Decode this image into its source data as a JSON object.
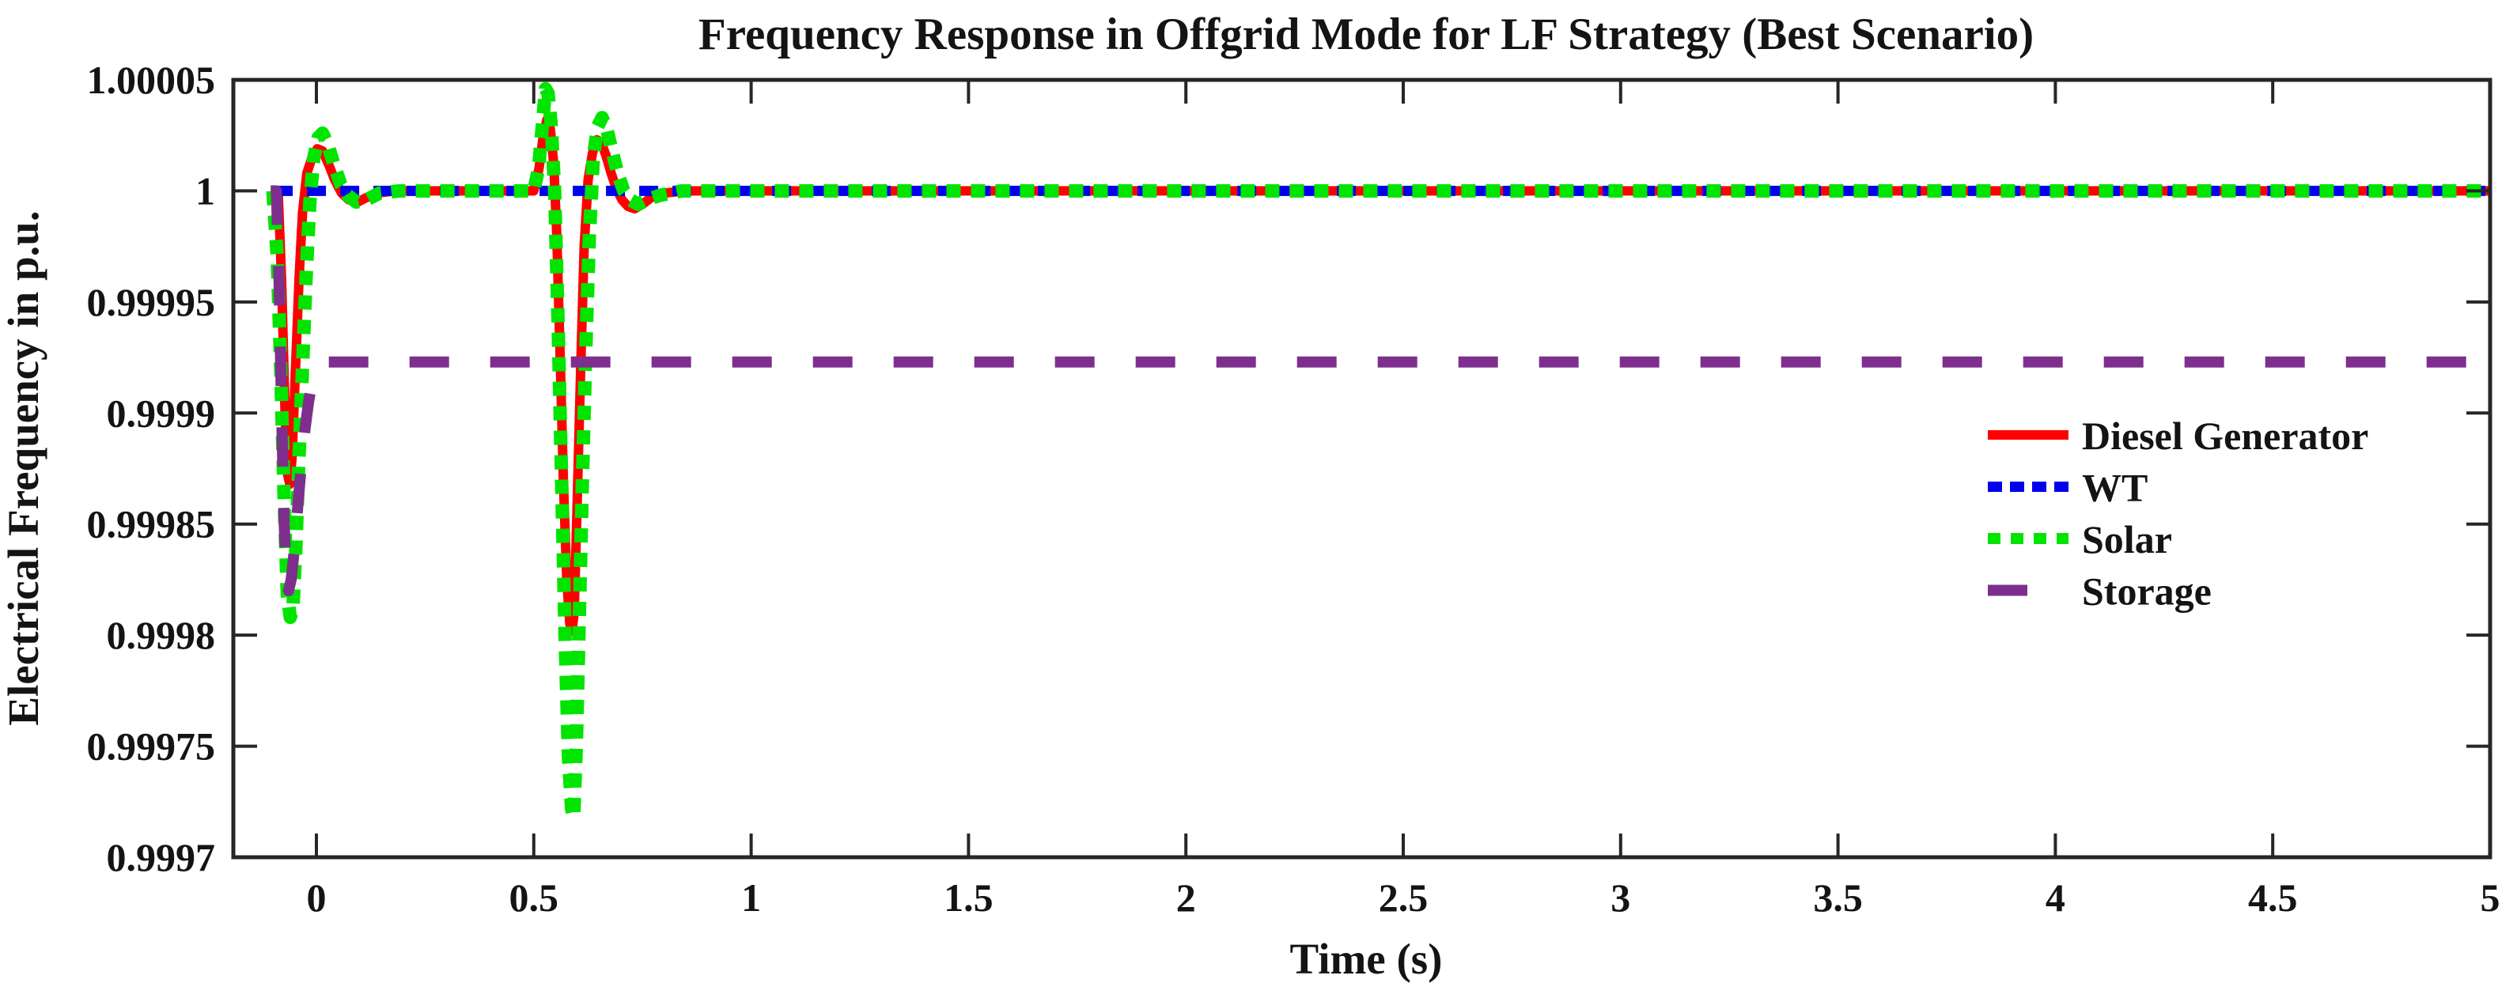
{
  "chart_data": {
    "type": "line",
    "title": "Frequency Response in Offgrid Mode for LF Strategy (Best Scenario)",
    "xlabel": "Time (s)",
    "ylabel": "Electrical Frequency in p.u.",
    "xlim": [
      -0.191,
      5
    ],
    "ylim": [
      0.9997,
      1.00005
    ],
    "grid": false,
    "box": true,
    "tick_direction": "in",
    "axis_color": "#262626",
    "background_color": "#ffffff",
    "xticks": [
      {
        "value": 0,
        "label": "0"
      },
      {
        "value": 0.5,
        "label": "0.5"
      },
      {
        "value": 1,
        "label": "1"
      },
      {
        "value": 1.5,
        "label": "1.5"
      },
      {
        "value": 2,
        "label": "2"
      },
      {
        "value": 2.5,
        "label": "2.5"
      },
      {
        "value": 3,
        "label": "3"
      },
      {
        "value": 3.5,
        "label": "3.5"
      },
      {
        "value": 4,
        "label": "4"
      },
      {
        "value": 4.5,
        "label": "4.5"
      },
      {
        "value": 5,
        "label": "5"
      }
    ],
    "yticks": [
      {
        "value": 0.9997,
        "label": "0.9997"
      },
      {
        "value": 0.99975,
        "label": "0.99975"
      },
      {
        "value": 0.9998,
        "label": "0.9998"
      },
      {
        "value": 0.99985,
        "label": "0.99985"
      },
      {
        "value": 0.9999,
        "label": "0.9999"
      },
      {
        "value": 0.99995,
        "label": "0.99995"
      },
      {
        "value": 1,
        "label": "1"
      },
      {
        "value": 1.00005,
        "label": "1.00005"
      }
    ],
    "legend_position": "right-center",
    "legend": [
      {
        "label": "Diesel Generator",
        "color": "#FF0000",
        "dash": "none",
        "width": 12
      },
      {
        "label": "WT",
        "color": "#0000EE",
        "dash": "18 10",
        "width": 13
      },
      {
        "label": "Solar",
        "color": "#00E400",
        "dash": "16 13",
        "width": 14
      },
      {
        "label": "Storage",
        "color": "#7E2F8E",
        "dash": "50 52",
        "width": 14
      }
    ],
    "series": [
      {
        "name": "Diesel Generator",
        "color": "#FF0000",
        "style": "solid",
        "width": 12,
        "dash": "none",
        "points": [
          [
            -0.105,
            1
          ],
          [
            -0.088,
            1
          ],
          [
            -0.08,
            0.99996
          ],
          [
            -0.072,
            0.9999
          ],
          [
            -0.066,
            0.999872
          ],
          [
            -0.061,
            0.999868
          ],
          [
            -0.056,
            0.99988
          ],
          [
            -0.048,
            0.99992
          ],
          [
            -0.04,
            0.99996
          ],
          [
            -0.032,
            0.99999
          ],
          [
            -0.022,
            1.000008
          ],
          [
            -0.01,
            1.000015
          ],
          [
            0.002,
            1.000019
          ],
          [
            0.014,
            1.000018
          ],
          [
            0.028,
            1.000012
          ],
          [
            0.042,
            1.000005
          ],
          [
            0.058,
            0.999999
          ],
          [
            0.075,
            0.999996
          ],
          [
            0.095,
            0.999995
          ],
          [
            0.115,
            0.999997
          ],
          [
            0.14,
            0.999999
          ],
          [
            0.18,
            1
          ],
          [
            0.5,
            1
          ],
          [
            0.512,
            1.00001
          ],
          [
            0.522,
            1.000025
          ],
          [
            0.53,
            1.000032
          ],
          [
            0.538,
            1.000028
          ],
          [
            0.546,
            1.000012
          ],
          [
            0.553,
            0.99998
          ],
          [
            0.56,
            0.99993
          ],
          [
            0.568,
            0.99987
          ],
          [
            0.576,
            0.999825
          ],
          [
            0.583,
            0.999805
          ],
          [
            0.588,
            0.999802
          ],
          [
            0.593,
            0.99981
          ],
          [
            0.6,
            0.99986
          ],
          [
            0.608,
            0.99992
          ],
          [
            0.616,
            0.999975
          ],
          [
            0.625,
            1.000005
          ],
          [
            0.635,
            1.000017
          ],
          [
            0.645,
            1.000023
          ],
          [
            0.655,
            1.000022
          ],
          [
            0.666,
            1.000016
          ],
          [
            0.678,
            1.000008
          ],
          [
            0.69,
            1.000001
          ],
          [
            0.703,
            0.999996
          ],
          [
            0.717,
            0.999993
          ],
          [
            0.732,
            0.999992
          ],
          [
            0.75,
            0.999994
          ],
          [
            0.77,
            0.999997
          ],
          [
            0.8,
            0.999999
          ],
          [
            0.85,
            1
          ],
          [
            5,
            1
          ]
        ]
      },
      {
        "name": "WT",
        "color": "#0000EE",
        "style": "dashed",
        "width": 13,
        "dash": "24 18",
        "points": [
          [
            -0.098,
            1
          ],
          [
            5,
            1
          ]
        ]
      },
      {
        "name": "Solar",
        "color": "#00E400",
        "style": "dotted",
        "width": 17,
        "dash": "18 13",
        "points": [
          [
            -0.1,
            1
          ],
          [
            -0.09,
            0.99997
          ],
          [
            -0.082,
            0.99992
          ],
          [
            -0.074,
            0.99986
          ],
          [
            -0.067,
            0.999818
          ],
          [
            -0.06,
            0.999808
          ],
          [
            -0.054,
            0.999812
          ],
          [
            -0.047,
            0.99984
          ],
          [
            -0.04,
            0.99988
          ],
          [
            -0.032,
            0.99992
          ],
          [
            -0.024,
            0.99996
          ],
          [
            -0.015,
            0.999995
          ],
          [
            -0.006,
            1.000015
          ],
          [
            0.004,
            1.000024
          ],
          [
            0.014,
            1.000026
          ],
          [
            0.026,
            1.000021
          ],
          [
            0.04,
            1.000012
          ],
          [
            0.056,
            1.000003
          ],
          [
            0.072,
            0.999998
          ],
          [
            0.092,
            0.999995
          ],
          [
            0.115,
            0.999996
          ],
          [
            0.145,
            0.999999
          ],
          [
            0.19,
            1
          ],
          [
            0.5,
            1
          ],
          [
            0.511,
            1.00001
          ],
          [
            0.52,
            1.00003
          ],
          [
            0.527,
            1.000046
          ],
          [
            0.533,
            1.000044
          ],
          [
            0.54,
            1.00003
          ],
          [
            0.548,
            1
          ],
          [
            0.556,
            0.99994
          ],
          [
            0.564,
            0.99987
          ],
          [
            0.572,
            0.9998
          ],
          [
            0.58,
            0.999745
          ],
          [
            0.587,
            0.999722
          ],
          [
            0.592,
            0.999718
          ],
          [
            0.598,
            0.99975
          ],
          [
            0.605,
            0.99981
          ],
          [
            0.612,
            0.99987
          ],
          [
            0.62,
            0.99993
          ],
          [
            0.628,
            0.99998
          ],
          [
            0.637,
            1.000015
          ],
          [
            0.647,
            1.000029
          ],
          [
            0.657,
            1.000033
          ],
          [
            0.668,
            1.000028
          ],
          [
            0.68,
            1.000018
          ],
          [
            0.693,
            1.000008
          ],
          [
            0.707,
            1
          ],
          [
            0.722,
            0.999996
          ],
          [
            0.74,
            0.999994
          ],
          [
            0.76,
            0.999996
          ],
          [
            0.79,
            0.999998
          ],
          [
            0.84,
            1
          ],
          [
            5,
            1
          ]
        ]
      },
      {
        "name": "Storage",
        "color": "#7E2F8E",
        "style": "dashed",
        "width": 14,
        "dash": "50 52",
        "points": [
          [
            -0.105,
            1
          ],
          [
            -0.092,
            1
          ],
          [
            -0.086,
            0.99996
          ],
          [
            -0.08,
            0.9999
          ],
          [
            -0.074,
            0.99985
          ],
          [
            -0.069,
            0.999825
          ],
          [
            -0.064,
            0.99982
          ],
          [
            -0.058,
            0.999825
          ],
          [
            -0.05,
            0.99984
          ],
          [
            -0.042,
            0.99986
          ],
          [
            -0.034,
            0.999878
          ],
          [
            -0.026,
            0.999893
          ],
          [
            -0.018,
            0.999905
          ],
          [
            -0.01,
            0.999914
          ],
          [
            0,
            0.99992
          ],
          [
            0.015,
            0.999923
          ],
          [
            5,
            0.999923
          ]
        ]
      }
    ]
  }
}
